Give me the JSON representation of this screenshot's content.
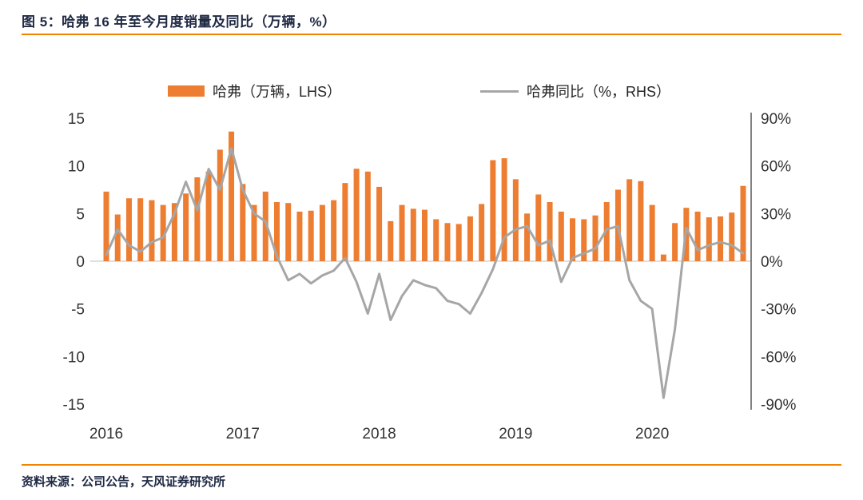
{
  "page": {
    "title": "图 5：哈弗 16 年至今月度销量及同比（万辆，%）",
    "source_note": "资料来源：公司公告，天风证券研究所"
  },
  "colors": {
    "bar_orange": "#ED7D31",
    "rule_orange": "#F08300",
    "line_gray": "#A6A6A6",
    "axis_text": "#333333",
    "title_text": "#202A44",
    "right_axis_line": "#595959",
    "zero_line": "#BFBFBF"
  },
  "legend": [
    {
      "label": "哈弗（万辆，LHS）",
      "type": "bar",
      "color": "#ED7D31"
    },
    {
      "label": "哈弗同比（%，RHS）",
      "type": "line",
      "color": "#A6A6A6"
    }
  ],
  "chart_data": {
    "type": "bar",
    "combo": "bar+line dual-axis",
    "title": "图 5：哈弗 16 年至今月度销量及同比（万辆，%）",
    "legend_position": "top",
    "grid": "off",
    "x": [
      "2016-01",
      "2016-02",
      "2016-03",
      "2016-04",
      "2016-05",
      "2016-06",
      "2016-07",
      "2016-08",
      "2016-09",
      "2016-10",
      "2016-11",
      "2016-12",
      "2017-01",
      "2017-02",
      "2017-03",
      "2017-04",
      "2017-05",
      "2017-06",
      "2017-07",
      "2017-08",
      "2017-09",
      "2017-10",
      "2017-11",
      "2017-12",
      "2018-01",
      "2018-02",
      "2018-03",
      "2018-04",
      "2018-05",
      "2018-06",
      "2018-07",
      "2018-08",
      "2018-09",
      "2018-10",
      "2018-11",
      "2018-12",
      "2019-01",
      "2019-02",
      "2019-03",
      "2019-04",
      "2019-05",
      "2019-06",
      "2019-07",
      "2019-08",
      "2019-09",
      "2019-10",
      "2019-11",
      "2019-12",
      "2020-01",
      "2020-02",
      "2020-03",
      "2020-04",
      "2020-05",
      "2020-06",
      "2020-07",
      "2020-08",
      "2020-09"
    ],
    "series": [
      {
        "name": "哈弗（万辆，LHS）",
        "type": "bar",
        "axis": "left",
        "values": [
          7.3,
          4.9,
          6.6,
          6.6,
          6.4,
          5.9,
          6.1,
          7.1,
          8.8,
          9.4,
          11.7,
          13.6,
          8.1,
          5.9,
          7.3,
          6.2,
          6.1,
          5.2,
          5.3,
          5.9,
          6.4,
          8.2,
          9.7,
          9.4,
          7.8,
          4.2,
          5.9,
          5.5,
          5.4,
          4.4,
          4.0,
          3.9,
          4.7,
          6.0,
          10.6,
          10.8,
          8.6,
          5.0,
          7.0,
          6.2,
          5.2,
          4.5,
          4.4,
          4.8,
          6.2,
          7.5,
          8.6,
          8.4,
          5.9,
          0.7,
          4.0,
          5.6,
          5.2,
          4.6,
          4.7,
          5.1,
          7.9
        ]
      },
      {
        "name": "哈弗同比（%，RHS）",
        "type": "line",
        "axis": "right",
        "values": [
          4,
          20,
          10,
          6,
          12,
          15,
          30,
          50,
          32,
          58,
          45,
          71,
          45,
          30,
          25,
          3,
          -12,
          -8,
          -14,
          -9,
          -6,
          2,
          -13,
          -33,
          -8,
          -37,
          -22,
          -12,
          -15,
          -17,
          -25,
          -27,
          -33,
          -20,
          -5,
          15,
          20,
          22,
          10,
          13,
          -13,
          2,
          5,
          8,
          20,
          22,
          -12,
          -25,
          -30,
          -86,
          -43,
          21,
          7,
          10,
          12,
          10,
          5
        ]
      }
    ],
    "left_axis": {
      "label": "万辆",
      "ticks": [
        15,
        10,
        5,
        0,
        -5,
        -10,
        -15
      ],
      "range": [
        -15,
        15
      ]
    },
    "right_axis": {
      "label": "%",
      "tick_labels": [
        "90%",
        "60%",
        "30%",
        "0%",
        "-30%",
        "-60%",
        "-90%"
      ],
      "range": [
        -90,
        90
      ]
    },
    "x_tick_labels": [
      "2016",
      "2017",
      "2018",
      "2019",
      "2020"
    ]
  }
}
